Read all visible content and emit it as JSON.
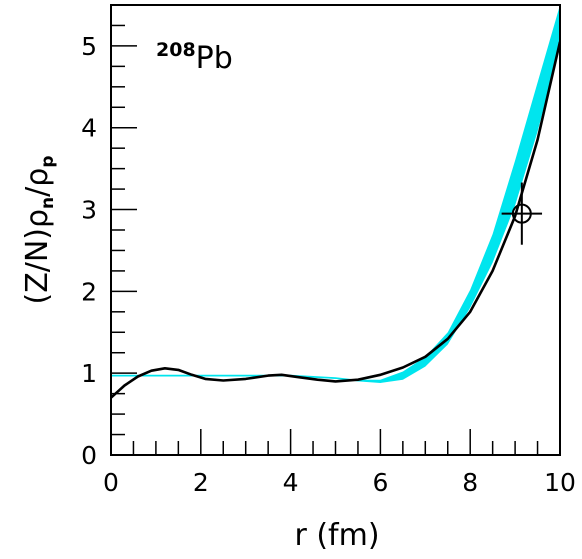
{
  "chart_data": {
    "type": "line",
    "title": "",
    "annotation": {
      "superscript": "208",
      "main": "Pb"
    },
    "xlabel": "r (fm)",
    "ylabel": {
      "base": "(Z/N)ρ",
      "sub1": "n",
      "mid": "/ρ",
      "sub2": "p"
    },
    "xlim": [
      0,
      10
    ],
    "ylim": [
      0,
      5.5
    ],
    "x_major_ticks": [
      0,
      2,
      4,
      6,
      8,
      10
    ],
    "x_minor_step": 0.5,
    "y_major_ticks": [
      0,
      1,
      2,
      3,
      4,
      5
    ],
    "y_minor_step": 0.25,
    "x_tick_labels": [
      "0",
      "2",
      "4",
      "6",
      "8",
      "10"
    ],
    "y_tick_labels": [
      "0",
      "1",
      "2",
      "3",
      "4",
      "5"
    ],
    "grid": false,
    "legend": "none",
    "colors": {
      "band": "#00e5ee",
      "model_line": "#00e5ee",
      "fit_line": "#000000",
      "axes": "#000000"
    },
    "series": [
      {
        "kind": "band",
        "x": [
          0,
          1,
          2,
          3,
          4,
          5,
          5.5,
          6,
          6.5,
          7,
          7.5,
          8,
          8.5,
          9,
          9.5,
          10
        ],
        "lower": [
          0.96,
          0.96,
          0.96,
          0.96,
          0.96,
          0.93,
          0.9,
          0.88,
          0.92,
          1.08,
          1.35,
          1.8,
          2.35,
          3.05,
          3.95,
          5.0
        ],
        "upper": [
          0.97,
          0.97,
          0.97,
          0.97,
          0.97,
          0.94,
          0.92,
          0.92,
          1.02,
          1.2,
          1.5,
          2.02,
          2.7,
          3.6,
          4.55,
          5.5
        ]
      },
      {
        "kind": "line",
        "x": [
          0,
          1,
          2,
          3,
          4,
          5,
          5.5,
          6,
          6.5,
          7,
          7.5,
          8,
          8.5,
          9,
          9.5,
          10
        ],
        "y": [
          0.97,
          0.97,
          0.97,
          0.97,
          0.97,
          0.94,
          0.91,
          0.9,
          0.95,
          1.12,
          1.42,
          1.88,
          2.5,
          3.3,
          4.22,
          5.3
        ]
      },
      {
        "kind": "line",
        "x": [
          0,
          0.3,
          0.6,
          0.9,
          1.2,
          1.5,
          1.8,
          2.1,
          2.5,
          3.0,
          3.5,
          3.8,
          4.2,
          4.6,
          5.0,
          5.5,
          6.0,
          6.5,
          7.0,
          7.5,
          8.0,
          8.5,
          9.0,
          9.5,
          10.0
        ],
        "y": [
          0.7,
          0.85,
          0.96,
          1.03,
          1.06,
          1.04,
          0.98,
          0.93,
          0.91,
          0.93,
          0.97,
          0.98,
          0.95,
          0.92,
          0.9,
          0.92,
          0.98,
          1.07,
          1.2,
          1.42,
          1.75,
          2.25,
          2.92,
          3.85,
          5.05
        ]
      }
    ],
    "data_point": {
      "x": 9.15,
      "y": 2.95,
      "xerr": 0.45,
      "yerr": 0.38
    }
  }
}
